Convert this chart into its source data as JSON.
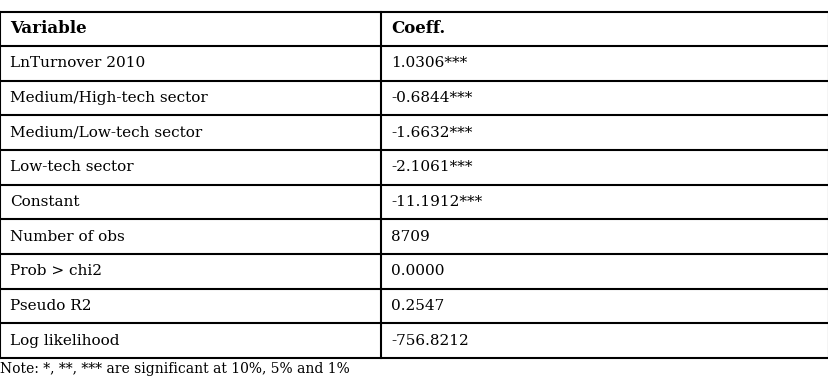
{
  "col1_header": "Variable",
  "col2_header": "Coeff.",
  "rows": [
    [
      "LnTurnover 2010",
      "1.0306***"
    ],
    [
      "Medium/High-tech sector",
      "-0.6844***"
    ],
    [
      "Medium/Low-tech sector",
      "-1.6632***"
    ],
    [
      "Low-tech sector",
      "-2.1061***"
    ],
    [
      "Constant",
      "-11.1912***"
    ],
    [
      "Number of obs",
      "8709"
    ],
    [
      "Prob > chi2",
      "0.0000"
    ],
    [
      "Pseudo R2",
      "0.2547"
    ],
    [
      "Log likelihood",
      "-756.8212"
    ]
  ],
  "note": "Note: *, **, *** are significant at 10%, 5% and 1%",
  "bg_color": "#ffffff",
  "text_color": "#000000",
  "header_fontsize": 12,
  "cell_fontsize": 11,
  "note_fontsize": 10,
  "col_split": 0.46,
  "border_color": "#000000",
  "border_lw": 1.5
}
